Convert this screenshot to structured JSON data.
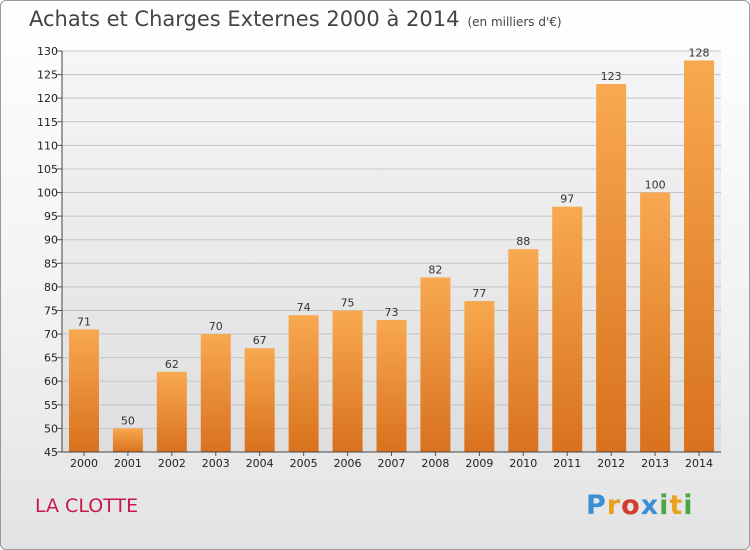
{
  "chart_data": {
    "type": "bar",
    "title": "Achats et Charges Externes 2000 à 2014",
    "subtitle": "(en milliers d'€)",
    "place": "LA CLOTTE",
    "categories": [
      "2000",
      "2001",
      "2002",
      "2003",
      "2004",
      "2005",
      "2006",
      "2007",
      "2008",
      "2009",
      "2010",
      "2011",
      "2012",
      "2013",
      "2014"
    ],
    "values": [
      71,
      50,
      62,
      70,
      67,
      74,
      75,
      73,
      82,
      77,
      88,
      97,
      123,
      100,
      128
    ],
    "ylim": [
      45,
      130
    ],
    "yticks": [
      45,
      50,
      55,
      60,
      65,
      70,
      75,
      80,
      85,
      90,
      95,
      100,
      105,
      110,
      115,
      120,
      125,
      130
    ],
    "grid": true,
    "bar_color": "#f39a3e",
    "xlabel": "",
    "ylabel": ""
  },
  "brand": {
    "logo_letters": [
      "P",
      "r",
      "o",
      "x",
      "i",
      "t",
      "i"
    ],
    "logo_colors": [
      "#3a8fd4",
      "#e8a21f",
      "#d33b2c",
      "#3a8fd4",
      "#4aa843",
      "#e8a21f",
      "#4aa843"
    ]
  }
}
